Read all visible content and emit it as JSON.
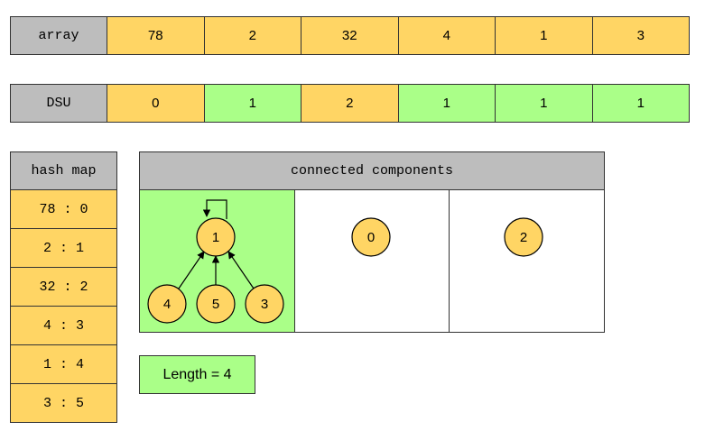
{
  "array_row": {
    "label": "array",
    "values": [
      "78",
      "2",
      "32",
      "4",
      "1",
      "3"
    ]
  },
  "dsu_row": {
    "label": "DSU",
    "values": [
      "0",
      "1",
      "2",
      "1",
      "1",
      "1"
    ],
    "colors": [
      "yellow",
      "green",
      "yellow",
      "green",
      "green",
      "green"
    ]
  },
  "hash_map": {
    "title": "hash map",
    "entries": [
      "78 : 0",
      "2 : 1",
      "32 : 2",
      "4 : 3",
      "1 : 4",
      "3 : 5"
    ]
  },
  "components": {
    "title": "connected components",
    "tree": {
      "root": "1",
      "children": [
        "4",
        "5",
        "3"
      ]
    },
    "singles": [
      "0",
      "2"
    ]
  },
  "length_label": "Length = 4",
  "colors": {
    "yellow": "#ffd564",
    "green": "#aaff88",
    "gray": "#bdbdbd"
  }
}
